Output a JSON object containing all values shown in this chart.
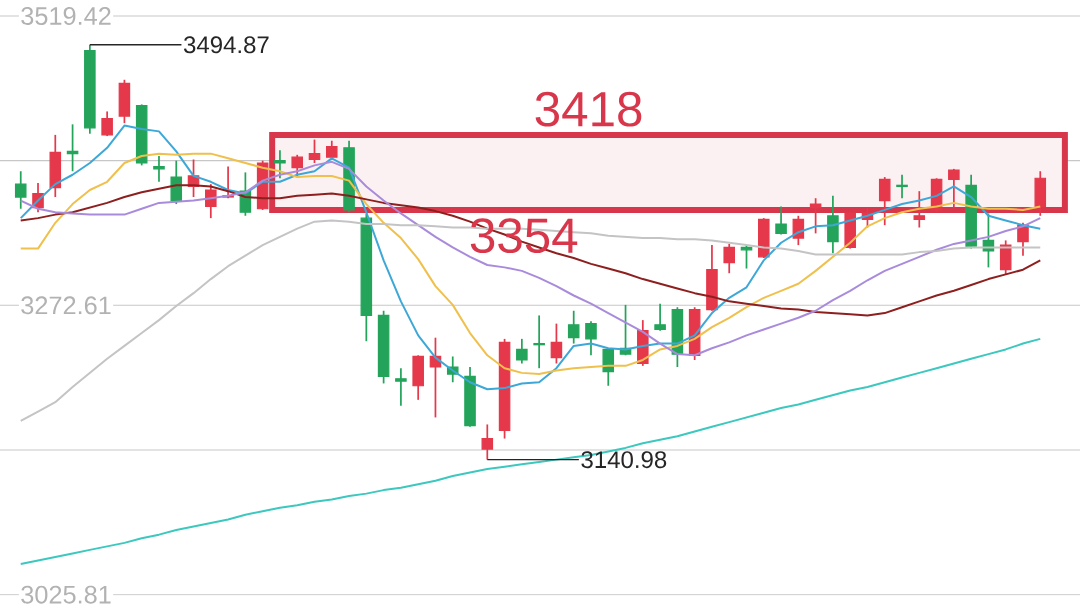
{
  "chart_data": {
    "type": "candlestick",
    "categories": [
      null,
      null,
      null,
      null,
      null,
      null,
      null,
      null,
      null,
      null,
      null,
      null,
      null,
      null,
      null,
      null,
      null,
      null,
      null,
      null,
      null,
      null,
      null,
      null,
      null,
      null,
      null,
      null,
      null,
      null,
      null,
      null,
      null,
      null,
      null,
      null,
      null,
      null,
      null,
      null,
      null,
      null,
      null,
      null,
      null,
      null,
      null,
      null,
      null,
      null,
      null,
      null,
      null,
      null,
      null,
      null,
      null,
      null,
      null,
      null
    ],
    "ohlc": [
      [
        3376,
        3387,
        3355,
        3365
      ],
      [
        3356,
        3377,
        3352,
        3368
      ],
      [
        3373,
        3418,
        3365,
        3403
      ],
      [
        3404,
        3427,
        3387,
        3402
      ],
      [
        3490,
        3494.87,
        3419,
        3424
      ],
      [
        3418,
        3438,
        3417,
        3432
      ],
      [
        3434,
        3465,
        3428,
        3462
      ],
      [
        3443,
        3444,
        3392,
        3394
      ],
      [
        3391,
        3400,
        3378,
        3389
      ],
      [
        3382,
        3396,
        3359,
        3362
      ],
      [
        3374,
        3397,
        3365,
        3383
      ],
      [
        3357,
        3376,
        3347,
        3371
      ],
      [
        3365,
        3391,
        3364,
        3366
      ],
      [
        3370,
        3386,
        3349,
        3352
      ],
      [
        3355,
        3396,
        3354,
        3394
      ],
      [
        3396,
        3405,
        3381,
        3394
      ],
      [
        3390,
        3401,
        3383,
        3399
      ],
      [
        3397,
        3414,
        3394,
        3402
      ],
      [
        3399,
        3413,
        3397,
        3408
      ],
      [
        3407,
        3413,
        3352,
        3354
      ],
      [
        3347,
        3351,
        3242,
        3264
      ],
      [
        3264,
        3268,
        3206,
        3212
      ],
      [
        3210,
        3219,
        3187,
        3208
      ],
      [
        3204,
        3230,
        3192,
        3229
      ],
      [
        3220,
        3245,
        3177,
        3229
      ],
      [
        3220,
        3229,
        3207,
        3214
      ],
      [
        3212,
        3220,
        3169,
        3170
      ],
      [
        3150,
        3171,
        3140.98,
        3159
      ],
      [
        3166,
        3244,
        3159,
        3241
      ],
      [
        3235,
        3244,
        3223,
        3226
      ],
      [
        3240,
        3264,
        3219,
        3239
      ],
      [
        3228,
        3257,
        3223,
        3241
      ],
      [
        3256,
        3268,
        3240,
        3245
      ],
      [
        3257,
        3259,
        3230,
        3244
      ],
      [
        3235,
        3236,
        3204,
        3216
      ],
      [
        3236,
        3273,
        3230,
        3231
      ],
      [
        3223,
        3260,
        3221,
        3251
      ],
      [
        3256,
        3274,
        3251,
        3252
      ],
      [
        3269,
        3271,
        3220,
        3231
      ],
      [
        3230,
        3271,
        3226,
        3269
      ],
      [
        3269,
        3324,
        3268,
        3303
      ],
      [
        3309,
        3325,
        3300,
        3322
      ],
      [
        3322,
        3324,
        3304,
        3320
      ],
      [
        3314,
        3347,
        3313,
        3346
      ],
      [
        3342,
        3357,
        3333,
        3334
      ],
      [
        3330,
        3349,
        3324,
        3346
      ],
      [
        3356,
        3364,
        3334,
        3359
      ],
      [
        3349,
        3366,
        3317,
        3327
      ],
      [
        3322,
        3352,
        3321,
        3351
      ],
      [
        3346,
        3356,
        3339,
        3351
      ],
      [
        3362,
        3382,
        3341,
        3380
      ],
      [
        3375,
        3384,
        3364,
        3374
      ],
      [
        3346,
        3370,
        3339,
        3349
      ],
      [
        3354,
        3381,
        3352,
        3380
      ],
      [
        3380,
        3389,
        3355,
        3388
      ],
      [
        3375,
        3384,
        3321,
        3323
      ],
      [
        3328,
        3351,
        3305,
        3319
      ],
      [
        3303,
        3328,
        3299,
        3324
      ],
      [
        3327,
        3343,
        3315,
        3341
      ],
      [
        3357,
        3387,
        3349,
        3381
      ]
    ],
    "colors": [
      "#23a45a",
      "#e5384b",
      "#e5384b",
      "#23a45a",
      "#23a45a",
      "#e5384b",
      "#e5384b",
      "#23a45a",
      "#23a45a",
      "#23a45a",
      "#e5384b",
      "#e5384b",
      "#e5384b",
      "#23a45a",
      "#e5384b",
      "#23a45a",
      "#e5384b",
      "#e5384b",
      "#e5384b",
      "#23a45a",
      "#23a45a",
      "#23a45a",
      "#23a45a",
      "#e5384b",
      "#e5384b",
      "#23a45a",
      "#23a45a",
      "#e5384b",
      "#e5384b",
      "#23a45a",
      "#23a45a",
      "#e5384b",
      "#23a45a",
      "#23a45a",
      "#23a45a",
      "#23a45a",
      "#e5384b",
      "#23a45a",
      "#23a45a",
      "#e5384b",
      "#e5384b",
      "#e5384b",
      "#23a45a",
      "#e5384b",
      "#23a45a",
      "#e5384b",
      "#e5384b",
      "#23a45a",
      "#e5384b",
      "#e5384b",
      "#e5384b",
      "#23a45a",
      "#e5384b",
      "#e5384b",
      "#e5384b",
      "#23a45a",
      "#23a45a",
      "#e5384b",
      "#e5384b",
      "#e5384b"
    ],
    "series": [
      {
        "type": "line",
        "color": "#3da8d8",
        "values": [
          3347,
          3362,
          3376,
          3384,
          3394,
          3407,
          3426,
          3423,
          3421,
          3404,
          3383,
          3378,
          3371,
          3368,
          3378,
          3378,
          3384,
          3387,
          3398,
          3390,
          3352,
          3311,
          3276,
          3247,
          3228,
          3217,
          3207,
          3201,
          3202,
          3206,
          3207,
          3219,
          3238,
          3240,
          3236,
          3235,
          3238,
          3240,
          3240,
          3247,
          3266,
          3279,
          3288,
          3311,
          3326,
          3335,
          3340,
          3341,
          3345,
          3349,
          3354,
          3359,
          3362,
          3366,
          3374,
          3365,
          3349,
          3345,
          3341,
          3338
        ]
      },
      {
        "type": "line",
        "color": "#f0c04c",
        "values": [
          3321,
          3321,
          3343,
          3359,
          3371,
          3378,
          3394,
          3400,
          3402,
          3401,
          3402,
          3402,
          3398,
          3394,
          3390,
          3387,
          3382,
          3383,
          3383,
          3379,
          3359,
          3343,
          3330,
          3312,
          3289,
          3273,
          3249,
          3230,
          3219,
          3215,
          3214,
          3217,
          3219,
          3220,
          3221,
          3221,
          3226,
          3235,
          3238,
          3244,
          3254,
          3262,
          3271,
          3279,
          3285,
          3291,
          3302,
          3314,
          3326,
          3340,
          3347,
          3352,
          3355,
          3357,
          3360,
          3357,
          3355,
          3355,
          3354,
          3357
        ]
      },
      {
        "type": "line",
        "color": "#8e1f1f",
        "values": [
          3345,
          3347,
          3350,
          3352,
          3356,
          3360,
          3365,
          3369,
          3372,
          3375,
          3375,
          3374,
          3370,
          3365,
          3364,
          3364,
          3366,
          3367,
          3368,
          3366,
          3363,
          3360,
          3358,
          3356,
          3353,
          3349,
          3344,
          3338,
          3333,
          3327,
          3322,
          3317,
          3313,
          3308,
          3304,
          3300,
          3295,
          3291,
          3287,
          3283,
          3280,
          3276,
          3274,
          3272,
          3270,
          3269,
          3267,
          3266,
          3265,
          3264,
          3266,
          3271,
          3276,
          3281,
          3285,
          3290,
          3295,
          3299,
          3303,
          3311
        ]
      },
      {
        "type": "line",
        "color": "#a98bdc",
        "values": [
          3362,
          3355,
          3352,
          3351,
          3350,
          3350,
          3350,
          3355,
          3360,
          3361,
          3362,
          3364,
          3366,
          3369,
          3379,
          3384,
          3387,
          3392,
          3395,
          3389,
          3374,
          3362,
          3351,
          3341,
          3331,
          3322,
          3314,
          3307,
          3305,
          3302,
          3296,
          3289,
          3281,
          3274,
          3266,
          3258,
          3250,
          3240,
          3231,
          3230,
          3236,
          3241,
          3247,
          3252,
          3257,
          3262,
          3268,
          3277,
          3285,
          3294,
          3302,
          3308,
          3314,
          3320,
          3325,
          3328,
          3331,
          3336,
          3340,
          3347
        ]
      },
      {
        "type": "line",
        "color": "#c4c4c4",
        "values": [
          3174,
          3182,
          3190,
          3203,
          3215,
          3227,
          3238,
          3249,
          3260,
          3272,
          3283,
          3295,
          3306,
          3315,
          3324,
          3331,
          3338,
          3344,
          3345,
          3344,
          3342,
          3342,
          3341,
          3341,
          3340,
          3339,
          3339,
          3338,
          3338,
          3338,
          3337,
          3336,
          3335,
          3334,
          3332,
          3331,
          3330,
          3330,
          3329,
          3329,
          3328,
          3326,
          3324,
          3322,
          3321,
          3319,
          3316,
          3316,
          3316,
          3316,
          3316,
          3316,
          3318,
          3319,
          3321,
          3322,
          3322,
          3322,
          3322,
          3322
        ]
      },
      {
        "type": "line",
        "color": "#3cc8bf",
        "values": [
          3052,
          3055,
          3058,
          3061,
          3064,
          3067,
          3070,
          3074,
          3077,
          3081,
          3084,
          3087,
          3090,
          3094,
          3097,
          3100,
          3102,
          3105,
          3107,
          3110,
          3112,
          3115,
          3117,
          3120,
          3123,
          3127,
          3130,
          3133,
          3135,
          3137,
          3139,
          3141,
          3143,
          3145,
          3148,
          3151,
          3155,
          3158,
          3161,
          3165,
          3169,
          3173,
          3177,
          3181,
          3185,
          3188,
          3192,
          3196,
          3200,
          3203,
          3207,
          3211,
          3215,
          3219,
          3223,
          3227,
          3231,
          3235,
          3240,
          3244
        ]
      }
    ],
    "ylim": [
      3025.81,
      3519.42
    ],
    "yticks": [
      3519.42,
      {
        "value": 3396.02,
        "label": null
      },
      3272.61,
      {
        "value": 3149.21,
        "label": null
      },
      3025.81
    ],
    "grid": "y",
    "tick_labels": "y",
    "bands": [
      {
        "axis": "y",
        "from": 3354,
        "to": 3418,
        "label": "3418",
        "color": "#d8364a"
      }
    ],
    "annotations": [
      "3494.87",
      "3140.98",
      "3354"
    ]
  }
}
